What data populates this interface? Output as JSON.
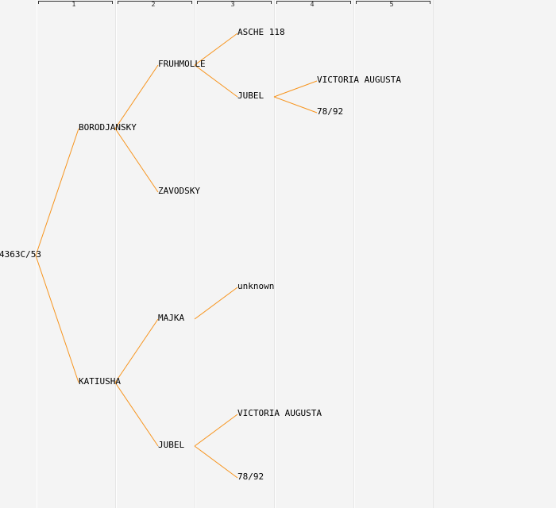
{
  "generations": [
    "1",
    "2",
    "3",
    "4",
    "5"
  ],
  "colors": {
    "edge": "#f7941d",
    "background": "#f4f4f4",
    "text": "#000000"
  },
  "tree": {
    "name": "4363C/53",
    "children": [
      {
        "name": "BORODJANSKY",
        "children": [
          {
            "name": "FRUHMOLLE",
            "children": [
              {
                "name": "ASCHE 118"
              },
              {
                "name": "JUBEL",
                "children": [
                  {
                    "name": "VICTORIA AUGUSTA"
                  },
                  {
                    "name": "78/92"
                  }
                ]
              }
            ]
          },
          {
            "name": "ZAVODSKY"
          }
        ]
      },
      {
        "name": "KATIUSHA",
        "children": [
          {
            "name": "MAJKA",
            "children": [
              {
                "name": "unknown"
              }
            ]
          },
          {
            "name": "JUBEL",
            "children": [
              {
                "name": "VICTORIA AUGUSTA"
              },
              {
                "name": "78/92"
              }
            ]
          }
        ]
      }
    ]
  }
}
